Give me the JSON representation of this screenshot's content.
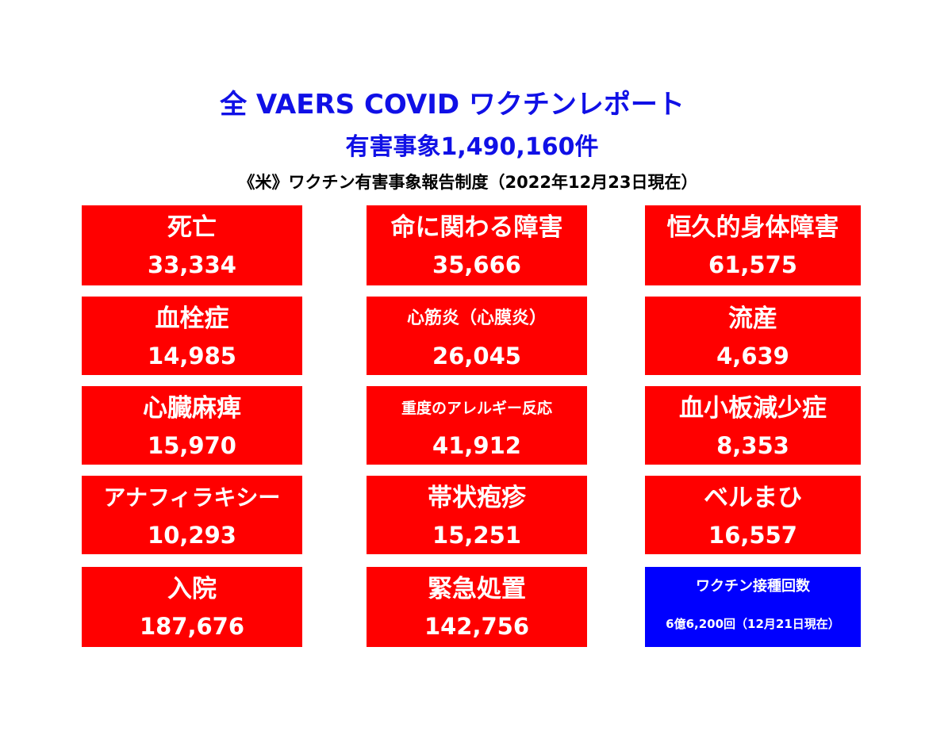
{
  "header": {
    "title": "全 VAERS COVID ワクチンレポート",
    "subtitle": "有害事象1,490,160件",
    "caption": "《米》ワクチン有害事象報告制度（2022年12月23日現在）"
  },
  "boxes": [
    {
      "label": "死亡",
      "value": "33,334"
    },
    {
      "label": "命に関わる障害",
      "value": "35,666"
    },
    {
      "label": "恒久的身体障害",
      "value": "61,575"
    },
    {
      "label": "血栓症",
      "value": "14,985"
    },
    {
      "label": "心筋炎（心膜炎）",
      "value": "26,045"
    },
    {
      "label": "流産",
      "value": "4,639"
    },
    {
      "label": "心臓麻痺",
      "value": "15,970"
    },
    {
      "label": "重度のアレルギー反応",
      "value": "41,912"
    },
    {
      "label": "血小板減少症",
      "value": "8,353"
    },
    {
      "label": "アナフィラキシー",
      "value": "10,293"
    },
    {
      "label": "帯状疱疹",
      "value": "15,251"
    },
    {
      "label": "ベルまひ",
      "value": "16,557"
    },
    {
      "label": "入院",
      "value": "187,676"
    },
    {
      "label": "緊急処置",
      "value": "142,756"
    },
    {
      "label": "ワクチン接種回数",
      "value": "6億6,200回（12月21日現在）"
    }
  ],
  "colors": {
    "title_blue": "#1010e6",
    "box_red": "#ff0000",
    "box_blue": "#0000ff",
    "box_text": "#ffffff"
  }
}
